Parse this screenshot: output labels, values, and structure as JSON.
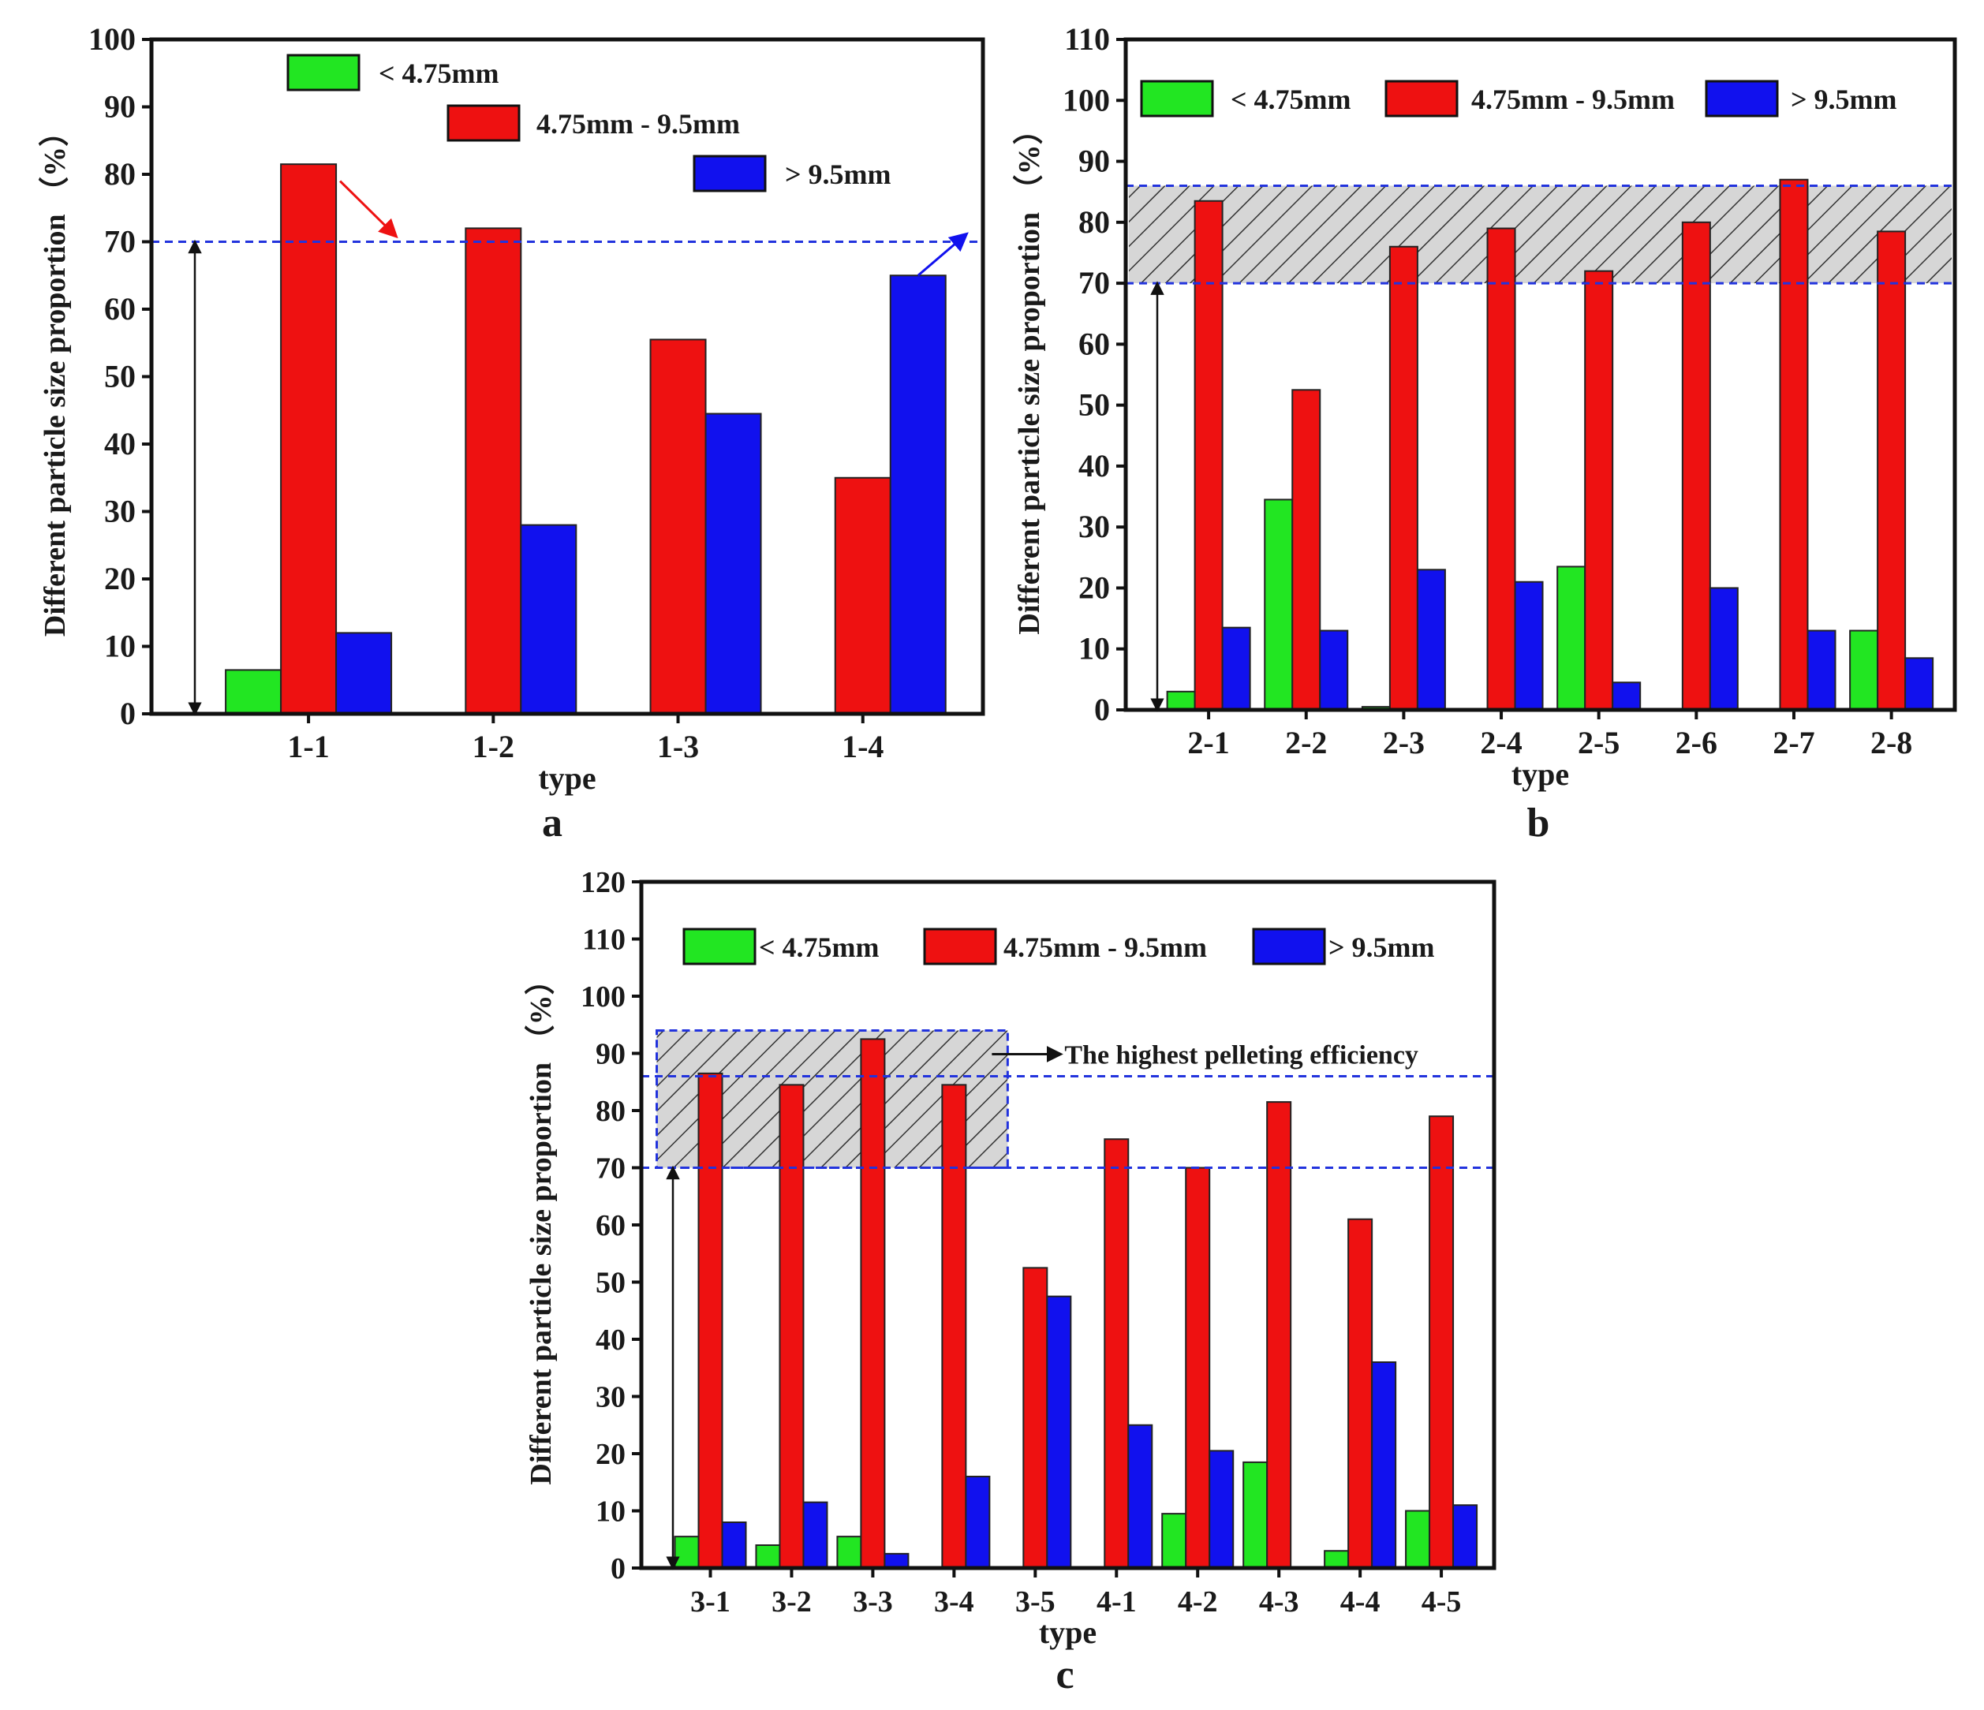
{
  "legend": {
    "small": "< 4.75mm",
    "medium": "4.75mm - 9.5mm",
    "large": "> 9.5mm"
  },
  "colors": {
    "small": "#22e622",
    "medium": "#ee1111",
    "large": "#1111ee",
    "reference_line": "#2233dd",
    "edge": "#222222"
  },
  "chart_data": [
    {
      "panel": "a",
      "type": "bar",
      "title": "",
      "xlabel": "type",
      "ylabel": "Different particle size proportion （%）",
      "ylim": [
        0,
        100
      ],
      "yticks": [
        0,
        10,
        20,
        30,
        40,
        50,
        60,
        70,
        80,
        90,
        100
      ],
      "categories": [
        "1-1",
        "1-2",
        "1-3",
        "1-4"
      ],
      "series": [
        {
          "name": "< 4.75mm",
          "values": [
            6.5,
            0,
            0,
            0
          ]
        },
        {
          "name": "4.75mm - 9.5mm",
          "values": [
            81.5,
            72,
            55.5,
            35
          ]
        },
        {
          "name": "> 9.5mm",
          "values": [
            12,
            28,
            44.5,
            65
          ]
        }
      ],
      "reference_lines": [
        70
      ],
      "legend_layout": "stacked-top",
      "annotations": []
    },
    {
      "panel": "b",
      "type": "bar",
      "title": "",
      "xlabel": "type",
      "ylabel": "Different particle size proportion （%）",
      "ylim": [
        0,
        110
      ],
      "yticks": [
        0,
        10,
        20,
        30,
        40,
        50,
        60,
        70,
        80,
        90,
        100,
        110
      ],
      "categories": [
        "2-1",
        "2-2",
        "2-3",
        "2-4",
        "2-5",
        "2-6",
        "2-7",
        "2-8"
      ],
      "series": [
        {
          "name": "< 4.75mm",
          "values": [
            3,
            34.5,
            0.5,
            0,
            23.5,
            0,
            0,
            13
          ]
        },
        {
          "name": "4.75mm - 9.5mm",
          "values": [
            83.5,
            52.5,
            76,
            79,
            72,
            80,
            87,
            78.5
          ]
        },
        {
          "name": "> 9.5mm",
          "values": [
            13.5,
            13,
            23,
            21,
            4.5,
            20,
            13,
            8.5
          ]
        }
      ],
      "reference_lines": [
        70,
        86
      ],
      "hatched_band": [
        70,
        86
      ],
      "legend_layout": "row",
      "annotations": []
    },
    {
      "panel": "c",
      "type": "bar",
      "title": "",
      "xlabel": "type",
      "ylabel": "Different particle size proportion （%）",
      "ylim": [
        0,
        120
      ],
      "yticks": [
        0,
        10,
        20,
        30,
        40,
        50,
        60,
        70,
        80,
        90,
        100,
        110,
        120
      ],
      "categories": [
        "3-1",
        "3-2",
        "3-3",
        "3-4",
        "3-5",
        "4-1",
        "4-2",
        "4-3",
        "4-4",
        "4-5"
      ],
      "series": [
        {
          "name": "< 4.75mm",
          "values": [
            5.5,
            4,
            5.5,
            0,
            0,
            0,
            9.5,
            18.5,
            3,
            10
          ]
        },
        {
          "name": "4.75mm - 9.5mm",
          "values": [
            86.5,
            84.5,
            92.5,
            84.5,
            52.5,
            75,
            70,
            81.5,
            61,
            79
          ]
        },
        {
          "name": "> 9.5mm",
          "values": [
            8,
            11.5,
            2.5,
            16,
            47.5,
            25,
            20.5,
            0,
            36,
            11
          ]
        }
      ],
      "reference_lines": [
        70,
        86
      ],
      "hatched_box": {
        "from_category": "3-1",
        "to_category": "3-4",
        "y_range": [
          70,
          94
        ]
      },
      "legend_layout": "row",
      "annotations": [
        "The highest pelleting efficiency"
      ]
    }
  ]
}
